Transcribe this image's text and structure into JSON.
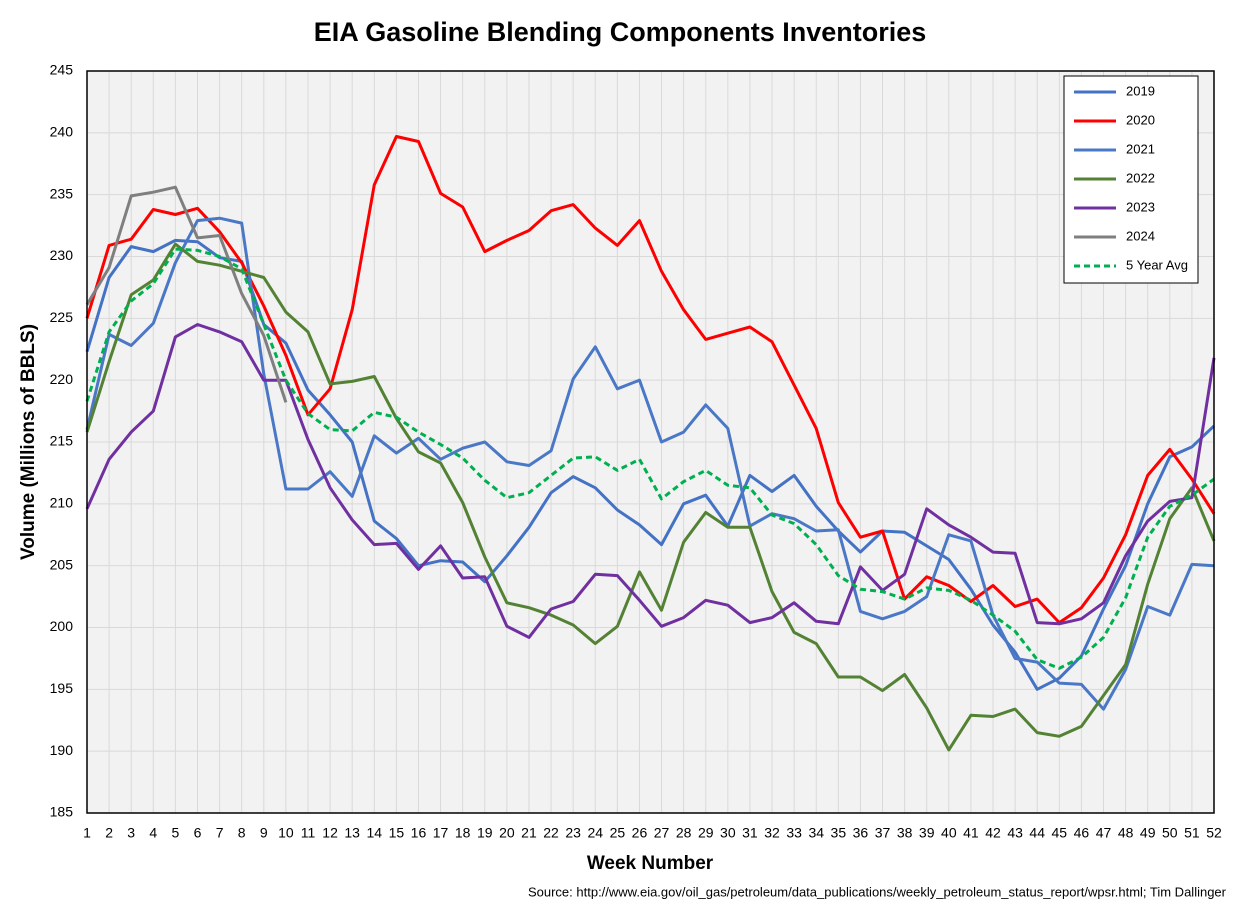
{
  "chart_data": {
    "type": "line",
    "title": "EIA Gasoline Blending Components Inventories",
    "xlabel": "Week Number",
    "ylabel": "Volume (Millions of BBLS)",
    "annotation": "Source: http://www.eia.gov/oil_gas/petroleum/data_publications/weekly_petroleum_status_report/wpsr.html; Tim Dallinger",
    "x": [
      1,
      2,
      3,
      4,
      5,
      6,
      7,
      8,
      9,
      10,
      11,
      12,
      13,
      14,
      15,
      16,
      17,
      18,
      19,
      20,
      21,
      22,
      23,
      24,
      25,
      26,
      27,
      28,
      29,
      30,
      31,
      32,
      33,
      34,
      35,
      36,
      37,
      38,
      39,
      40,
      41,
      42,
      43,
      44,
      45,
      46,
      47,
      48,
      49,
      50,
      51,
      52
    ],
    "xlim": [
      1,
      52
    ],
    "xticks": [
      1,
      2,
      3,
      4,
      5,
      6,
      7,
      8,
      9,
      10,
      11,
      12,
      13,
      14,
      15,
      16,
      17,
      18,
      19,
      20,
      21,
      22,
      23,
      24,
      25,
      26,
      27,
      28,
      29,
      30,
      31,
      32,
      33,
      34,
      35,
      36,
      37,
      38,
      39,
      40,
      41,
      42,
      43,
      44,
      45,
      46,
      47,
      48,
      49,
      50,
      51,
      52
    ],
    "ylim": [
      185,
      245
    ],
    "yticks": [
      185,
      190,
      195,
      200,
      205,
      210,
      215,
      220,
      225,
      230,
      235,
      240,
      245
    ],
    "grid": true,
    "legend": "upper right",
    "series": [
      {
        "name": "2019",
        "color": "#4472c4",
        "line_style": "solid",
        "values": [
          222.3,
          228.3,
          230.8,
          230.4,
          231.3,
          231.2,
          229.9,
          229.6,
          224.5,
          223,
          219.2,
          217.2,
          215,
          208.6,
          207.2,
          205,
          205.4,
          205.3,
          203.7,
          205.8,
          208.1,
          210.9,
          212.2,
          211.3,
          209.5,
          208.3,
          206.7,
          210,
          210.7,
          208.2,
          212.3,
          211,
          212.3,
          209.8,
          207.8,
          206.1,
          207.8,
          207.7,
          206.6,
          205.5,
          203.1,
          200.2,
          198,
          195,
          195.9,
          197.7,
          201.5,
          205,
          210,
          213.8,
          214.6,
          216.3
        ]
      },
      {
        "name": "2020",
        "color": "#ff0000",
        "line_style": "solid",
        "values": [
          225,
          230.9,
          231.4,
          233.8,
          233.4,
          233.9,
          232,
          229.5,
          226,
          222,
          217.2,
          219.3,
          225.7,
          235.8,
          239.7,
          239.3,
          235.1,
          234,
          230.4,
          231.3,
          232.1,
          233.7,
          234.2,
          232.3,
          230.9,
          232.9,
          228.8,
          225.7,
          223.3,
          223.8,
          224.3,
          223.1,
          219.6,
          216.1,
          210.1,
          207.3,
          207.8,
          202.3,
          204.1,
          203.4,
          202.1,
          203.4,
          201.7,
          202.3,
          200.4,
          201.6,
          204,
          207.5,
          212.3,
          214.4,
          212,
          209.2
        ]
      },
      {
        "name": "2021",
        "color": "#4a78c6",
        "line_style": "solid",
        "values": [
          216,
          223.7,
          222.8,
          224.6,
          229.5,
          232.9,
          233.1,
          232.7,
          220.5,
          211.2,
          211.2,
          212.6,
          210.6,
          215.5,
          214.1,
          215.3,
          213.6,
          214.5,
          215,
          213.4,
          213.1,
          214.3,
          220.1,
          222.7,
          219.3,
          220,
          215,
          215.8,
          218,
          216.1,
          208.2,
          209.2,
          208.8,
          207.8,
          207.9,
          201.3,
          200.7,
          201.3,
          202.5,
          207.5,
          207,
          201,
          197.5,
          197.2,
          195.5,
          195.4,
          193.4,
          196.6,
          201.7,
          201,
          205.1,
          205
        ]
      },
      {
        "name": "2022",
        "color": "#548235",
        "line_style": "solid",
        "values": [
          215.8,
          221.5,
          226.9,
          228.1,
          231,
          229.6,
          229.3,
          228.8,
          228.3,
          225.5,
          223.9,
          219.7,
          219.9,
          220.3,
          216.9,
          214.2,
          213.3,
          210.1,
          205.7,
          202,
          201.6,
          201,
          200.2,
          198.7,
          200.1,
          204.5,
          201.4,
          206.9,
          209.3,
          208.1,
          208.1,
          202.9,
          199.6,
          198.7,
          196,
          196,
          194.9,
          196.2,
          193.5,
          190.1,
          192.9,
          192.8,
          193.4,
          191.5,
          191.2,
          192,
          194.5,
          197,
          203.5,
          208.8,
          211.3,
          207
        ]
      },
      {
        "name": "2023",
        "color": "#7030a0",
        "line_style": "solid",
        "values": [
          209.6,
          213.6,
          215.8,
          217.5,
          223.5,
          224.5,
          223.9,
          223.1,
          220,
          220,
          215.2,
          211.3,
          208.7,
          206.7,
          206.8,
          204.7,
          206.6,
          204,
          204.1,
          200.1,
          199.2,
          201.5,
          202.1,
          204.3,
          204.2,
          202.2,
          200.1,
          200.8,
          202.2,
          201.8,
          200.4,
          200.8,
          202,
          200.5,
          200.3,
          204.9,
          203,
          204.3,
          209.6,
          208.3,
          207.3,
          206.1,
          206,
          200.4,
          200.3,
          200.7,
          202,
          205.8,
          208.6,
          210.2,
          210.5,
          221.8
        ]
      },
      {
        "name": "2024",
        "color": "#7f7f7f",
        "line_style": "solid",
        "values": [
          226.1,
          229.1,
          234.9,
          235.2,
          235.6,
          231.5,
          231.7,
          227,
          223.6,
          218.2,
          null,
          null,
          null,
          null,
          null,
          null,
          null,
          null,
          null,
          null,
          null,
          null,
          null,
          null,
          null,
          null,
          null,
          null,
          null,
          null,
          null,
          null,
          null,
          null,
          null,
          null,
          null,
          null,
          null,
          null,
          null,
          null,
          null,
          null,
          null,
          null,
          null,
          null,
          null,
          null,
          null,
          null
        ]
      },
      {
        "name": "5 Year Avg",
        "color": "#00b050",
        "line_style": "dashed",
        "values": [
          218.3,
          223.9,
          226.4,
          227.8,
          230.6,
          230.5,
          230,
          229,
          224.5,
          220,
          217.3,
          216,
          215.9,
          217.4,
          217,
          215.8,
          214.8,
          213.7,
          211.9,
          210.5,
          210.9,
          212.3,
          213.7,
          213.8,
          212.7,
          213.6,
          210.4,
          211.8,
          212.7,
          211.5,
          211.3,
          209.1,
          208.4,
          206.7,
          204.2,
          203.1,
          202.9,
          202.3,
          203.2,
          203,
          202.2,
          201,
          199.7,
          197.4,
          196.7,
          197.6,
          199.2,
          202.4,
          207.3,
          209.8,
          210.7,
          212
        ]
      }
    ]
  }
}
